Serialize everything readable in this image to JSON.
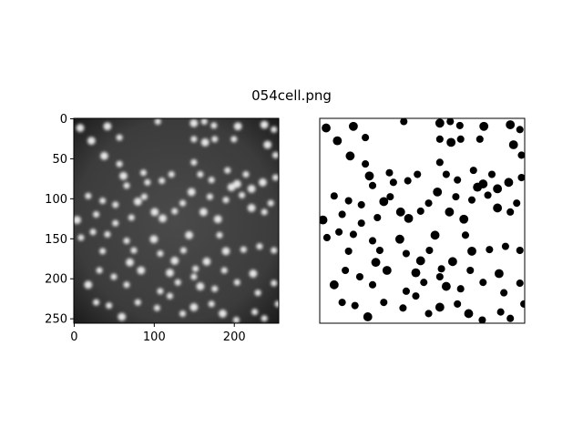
{
  "figure": {
    "title": "054cell.png"
  },
  "left_panel": {
    "image_size": [
      256,
      256
    ],
    "x_ticks": [
      "0",
      "100",
      "200"
    ],
    "y_ticks": [
      "0",
      "50",
      "100",
      "150",
      "200",
      "250"
    ],
    "x_tick_values": [
      0,
      100,
      200
    ],
    "y_tick_values": [
      0,
      50,
      100,
      150,
      200,
      250
    ],
    "colors": {
      "background": "#404040",
      "cell": "#e6e6e6"
    }
  },
  "right_panel": {
    "colors": {
      "background": "#ffffff",
      "cell": "#000000"
    }
  },
  "cells": [
    [
      8,
      12,
      5
    ],
    [
      22,
      28,
      5
    ],
    [
      42,
      10,
      5
    ],
    [
      57,
      24,
      4
    ],
    [
      105,
      4,
      4
    ],
    [
      150,
      6,
      5
    ],
    [
      163,
      4,
      4
    ],
    [
      175,
      9,
      4
    ],
    [
      205,
      10,
      5
    ],
    [
      238,
      8,
      5
    ],
    [
      150,
      26,
      4
    ],
    [
      164,
      30,
      5
    ],
    [
      176,
      26,
      4
    ],
    [
      200,
      26,
      4
    ],
    [
      242,
      33,
      5
    ],
    [
      250,
      14,
      4
    ],
    [
      252,
      46,
      4
    ],
    [
      38,
      47,
      5
    ],
    [
      57,
      57,
      4
    ],
    [
      62,
      72,
      5
    ],
    [
      66,
      84,
      4
    ],
    [
      87,
      68,
      4
    ],
    [
      92,
      80,
      4
    ],
    [
      110,
      78,
      4
    ],
    [
      122,
      70,
      4
    ],
    [
      150,
      55,
      4
    ],
    [
      158,
      70,
      4
    ],
    [
      172,
      77,
      4
    ],
    [
      192,
      65,
      4
    ],
    [
      204,
      82,
      5
    ],
    [
      215,
      70,
      4
    ],
    [
      222,
      88,
      5
    ],
    [
      236,
      80,
      5
    ],
    [
      252,
      74,
      4
    ],
    [
      18,
      97,
      4
    ],
    [
      28,
      120,
      4
    ],
    [
      36,
      103,
      4
    ],
    [
      52,
      108,
      4
    ],
    [
      52,
      131,
      4
    ],
    [
      72,
      124,
      4
    ],
    [
      80,
      104,
      5
    ],
    [
      88,
      98,
      4
    ],
    [
      101,
      117,
      5
    ],
    [
      111,
      125,
      5
    ],
    [
      126,
      116,
      4
    ],
    [
      136,
      106,
      4
    ],
    [
      147,
      92,
      5
    ],
    [
      162,
      117,
      5
    ],
    [
      170,
      98,
      4
    ],
    [
      180,
      126,
      5
    ],
    [
      190,
      102,
      4
    ],
    [
      197,
      86,
      5
    ],
    [
      210,
      96,
      4
    ],
    [
      222,
      112,
      5
    ],
    [
      238,
      117,
      4
    ],
    [
      246,
      106,
      4
    ],
    [
      4,
      127,
      5
    ],
    [
      9,
      149,
      4
    ],
    [
      24,
      142,
      4
    ],
    [
      36,
      166,
      4
    ],
    [
      42,
      145,
      4
    ],
    [
      66,
      153,
      4
    ],
    [
      70,
      180,
      5
    ],
    [
      75,
      165,
      4
    ],
    [
      100,
      151,
      5
    ],
    [
      108,
      169,
      4
    ],
    [
      126,
      178,
      5
    ],
    [
      137,
      165,
      4
    ],
    [
      144,
      146,
      5
    ],
    [
      152,
      188,
      4
    ],
    [
      166,
      179,
      5
    ],
    [
      182,
      146,
      4
    ],
    [
      190,
      166,
      5
    ],
    [
      212,
      164,
      4
    ],
    [
      232,
      160,
      4
    ],
    [
      250,
      165,
      4
    ],
    [
      18,
      208,
      5
    ],
    [
      32,
      190,
      4
    ],
    [
      50,
      198,
      4
    ],
    [
      66,
      208,
      4
    ],
    [
      84,
      190,
      5
    ],
    [
      108,
      216,
      4
    ],
    [
      120,
      193,
      5
    ],
    [
      130,
      205,
      4
    ],
    [
      150,
      198,
      4
    ],
    [
      158,
      210,
      5
    ],
    [
      176,
      213,
      4
    ],
    [
      188,
      190,
      4
    ],
    [
      204,
      205,
      4
    ],
    [
      224,
      194,
      5
    ],
    [
      230,
      218,
      4
    ],
    [
      250,
      206,
      4
    ],
    [
      28,
      230,
      4
    ],
    [
      44,
      234,
      4
    ],
    [
      60,
      248,
      5
    ],
    [
      80,
      230,
      4
    ],
    [
      104,
      237,
      4
    ],
    [
      120,
      222,
      4
    ],
    [
      136,
      244,
      4
    ],
    [
      150,
      236,
      5
    ],
    [
      172,
      232,
      4
    ],
    [
      186,
      244,
      5
    ],
    [
      203,
      252,
      4
    ],
    [
      226,
      242,
      4
    ],
    [
      238,
      250,
      4
    ],
    [
      255,
      232,
      4
    ]
  ]
}
